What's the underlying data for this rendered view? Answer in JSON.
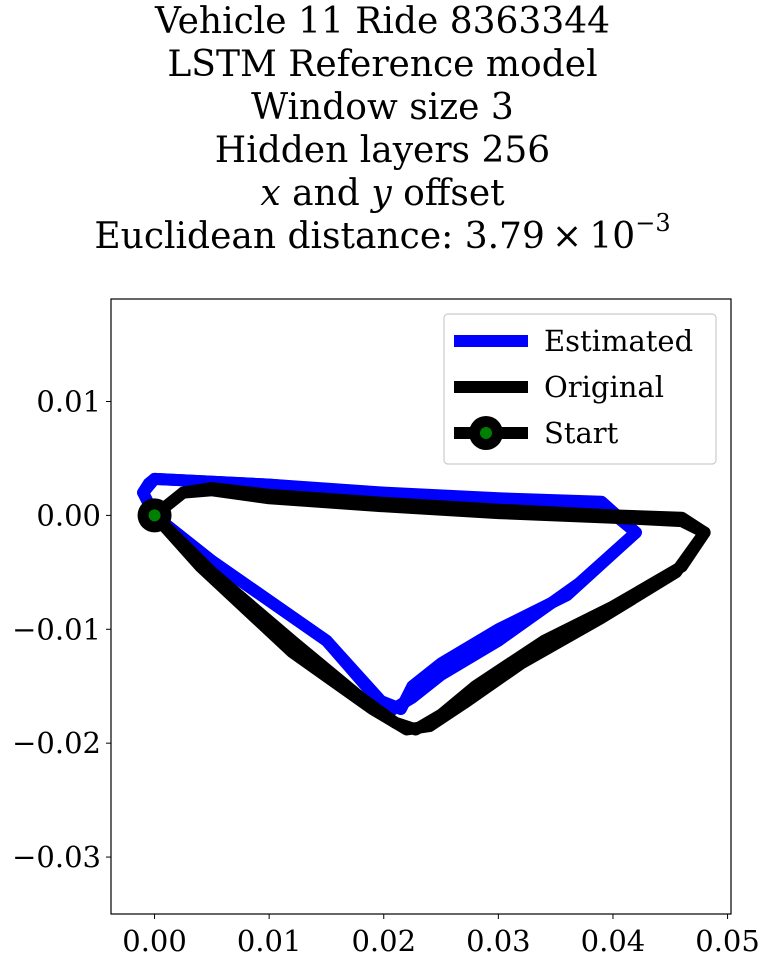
{
  "chart_data": {
    "type": "line",
    "title_lines": [
      "Vehicle 11 Ride 8363344",
      "LSTM Reference model",
      "Window size 3",
      "Hidden layers 256"
    ],
    "offset_line": {
      "x": "x",
      "and": "and",
      "y": "y",
      "rest": "offset"
    },
    "distance_line": {
      "prefix": "Euclidean distance: 3.79 × 10",
      "exponent": "−3"
    },
    "xlabel": "",
    "ylabel": "",
    "xlim": [
      -0.0038,
      0.0503
    ],
    "ylim": [
      -0.035,
      0.019
    ],
    "xticks": [
      {
        "value": 0.0,
        "label": "0.00"
      },
      {
        "value": 0.01,
        "label": "0.01"
      },
      {
        "value": 0.02,
        "label": "0.02"
      },
      {
        "value": 0.03,
        "label": "0.03"
      },
      {
        "value": 0.04,
        "label": "0.04"
      },
      {
        "value": 0.05,
        "label": "0.05"
      }
    ],
    "yticks": [
      {
        "value": 0.01,
        "label": "0.01"
      },
      {
        "value": 0.0,
        "label": "0.00"
      },
      {
        "value": -0.01,
        "label": "−0.01"
      },
      {
        "value": -0.02,
        "label": "−0.02"
      },
      {
        "value": -0.03,
        "label": "−0.03"
      }
    ],
    "legend_position": "upper right",
    "series": [
      {
        "name": "Estimated",
        "color": "#0000ff",
        "points": [
          [
            0.0,
            0.0
          ],
          [
            -0.001,
            0.002
          ],
          [
            -0.0005,
            0.0028
          ],
          [
            0.0,
            0.0032
          ],
          [
            0.01,
            0.0027
          ],
          [
            0.02,
            0.002
          ],
          [
            0.03,
            0.0015
          ],
          [
            0.039,
            0.0012
          ],
          [
            0.042,
            -0.0015
          ],
          [
            0.036,
            -0.007
          ],
          [
            0.03,
            -0.01
          ],
          [
            0.025,
            -0.013
          ],
          [
            0.0225,
            -0.015
          ],
          [
            0.0215,
            -0.017
          ],
          [
            0.0195,
            -0.0162
          ],
          [
            0.015,
            -0.011
          ],
          [
            0.005,
            -0.004
          ],
          [
            0.0,
            0.0
          ]
        ]
      },
      {
        "name": "Estimated",
        "color": "#0000ff",
        "points": [
          [
            -0.001,
            0.002
          ],
          [
            0.0,
            0.0032
          ],
          [
            0.01,
            0.0027
          ],
          [
            0.02,
            0.0018
          ],
          [
            0.03,
            0.0012
          ],
          [
            0.039,
            0.001
          ],
          [
            0.042,
            -0.0015
          ],
          [
            0.037,
            -0.006
          ],
          [
            0.03,
            -0.011
          ],
          [
            0.025,
            -0.014
          ],
          [
            0.0225,
            -0.016
          ],
          [
            0.0205,
            -0.0172
          ],
          [
            0.0195,
            -0.016
          ],
          [
            0.015,
            -0.011
          ],
          [
            0.005,
            -0.004
          ],
          [
            0.0,
            0.0
          ]
        ]
      },
      {
        "name": "Original",
        "color": "#000000",
        "points": [
          [
            0.0,
            0.0
          ],
          [
            0.0025,
            0.002
          ],
          [
            0.005,
            0.0022
          ],
          [
            0.01,
            0.0015
          ],
          [
            0.02,
            0.0008
          ],
          [
            0.03,
            0.0002
          ],
          [
            0.04,
            -0.0002
          ],
          [
            0.046,
            -0.0005
          ],
          [
            0.048,
            -0.0015
          ],
          [
            0.046,
            -0.0045
          ],
          [
            0.04,
            -0.008
          ],
          [
            0.034,
            -0.011
          ],
          [
            0.028,
            -0.015
          ],
          [
            0.025,
            -0.0175
          ],
          [
            0.0228,
            -0.0188
          ],
          [
            0.021,
            -0.0182
          ],
          [
            0.018,
            -0.016
          ],
          [
            0.012,
            -0.011
          ],
          [
            0.005,
            -0.005
          ],
          [
            0.0,
            0.0
          ]
        ]
      },
      {
        "name": "Original",
        "color": "#000000",
        "points": [
          [
            0.0025,
            0.002
          ],
          [
            0.005,
            0.0024
          ],
          [
            0.01,
            0.0018
          ],
          [
            0.02,
            0.0011
          ],
          [
            0.03,
            0.0005
          ],
          [
            0.04,
            0.0
          ],
          [
            0.046,
            -0.0002
          ],
          [
            0.048,
            -0.0015
          ],
          [
            0.0455,
            -0.005
          ],
          [
            0.039,
            -0.009
          ],
          [
            0.032,
            -0.013
          ],
          [
            0.027,
            -0.0165
          ],
          [
            0.024,
            -0.0185
          ],
          [
            0.022,
            -0.0188
          ],
          [
            0.019,
            -0.017
          ],
          [
            0.012,
            -0.012
          ],
          [
            0.004,
            -0.0045
          ],
          [
            0.0,
            0.0
          ]
        ]
      }
    ],
    "start": {
      "name": "Start",
      "point": [
        0.0,
        0.0
      ],
      "fill": "#008000",
      "edge": "#000000"
    },
    "legend": [
      {
        "label": "Estimated",
        "color": "#0000ff",
        "kind": "line"
      },
      {
        "label": "Original",
        "color": "#000000",
        "kind": "line"
      },
      {
        "label": "Start",
        "color": "#000000",
        "kind": "marker"
      }
    ]
  }
}
